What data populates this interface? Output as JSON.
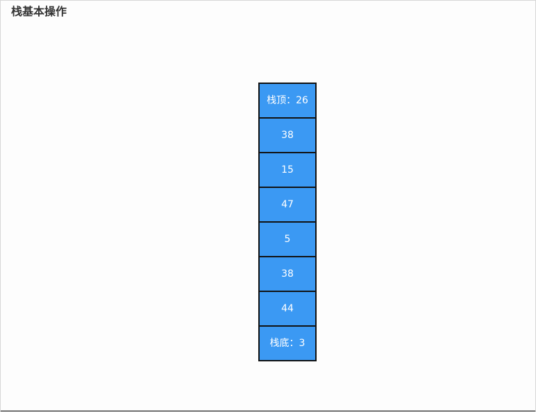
{
  "page": {
    "title": "栈基本操作"
  },
  "stack": {
    "top_label": "栈顶：26",
    "items": [
      "38",
      "15",
      "47",
      "5",
      "38",
      "44"
    ],
    "bottom_label": "栈底：3",
    "cell_color": "#3b99f3",
    "border_color": "#111111"
  }
}
